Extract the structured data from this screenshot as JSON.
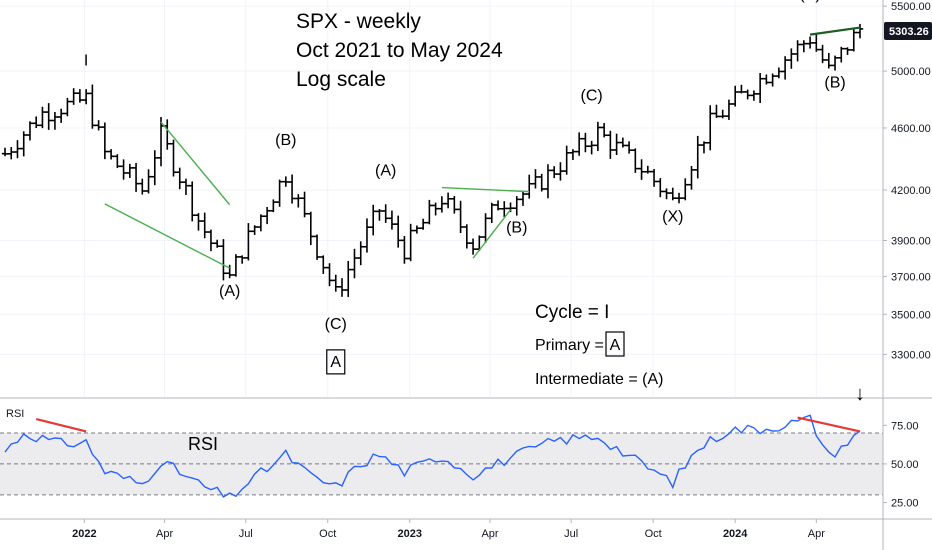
{
  "chart_data": [
    {
      "type": "ohlc",
      "panel": "price",
      "title_lines": [
        "SPX - weekly",
        "Oct 2021 to May 2024",
        "Log scale"
      ],
      "scale": "log",
      "ylim": [
        3100,
        5550
      ],
      "y_ticks": [
        5500,
        5000,
        4600,
        4200,
        3900,
        3700,
        3500,
        3300
      ],
      "y_tick_labels": [
        "5500.00",
        "5000.00",
        "4600.00",
        "4200.00",
        "3900.00",
        "3700.00",
        "3500.00",
        "3300.00"
      ],
      "last_price_label": "5303.26",
      "bar_color": "#000000",
      "anchors": [
        [
          "2021-10-04",
          4430
        ],
        [
          "2021-11-15",
          4700
        ],
        [
          "2022-01-03",
          4800
        ],
        [
          "2022-01-24",
          4430
        ],
        [
          "2022-02-21",
          4280
        ],
        [
          "2022-03-07",
          4200
        ],
        [
          "2022-03-28",
          4550
        ],
        [
          "2022-05-09",
          4020
        ],
        [
          "2022-06-13",
          3690
        ],
        [
          "2022-06-27",
          3850
        ],
        [
          "2022-08-15",
          4300
        ],
        [
          "2022-09-12",
          3940
        ],
        [
          "2022-10-10",
          3600
        ],
        [
          "2022-11-28",
          4080
        ],
        [
          "2022-12-26",
          3850
        ],
        [
          "2023-02-06",
          4150
        ],
        [
          "2023-03-13",
          3880
        ],
        [
          "2023-04-10",
          4120
        ],
        [
          "2023-05-15",
          4190
        ],
        [
          "2023-07-31",
          4570
        ],
        [
          "2023-09-25",
          4300
        ],
        [
          "2023-10-23",
          4130
        ],
        [
          "2023-12-04",
          4630
        ],
        [
          "2024-03-25",
          5250
        ],
        [
          "2024-04-15",
          5000
        ],
        [
          "2024-05-20",
          5320
        ]
      ],
      "x_tick_labels": [
        {
          "date": "2022-01-01",
          "label": "2022",
          "bold": true
        },
        {
          "date": "2022-04-01",
          "label": "Apr",
          "bold": false
        },
        {
          "date": "2022-07-01",
          "label": "Jul",
          "bold": false
        },
        {
          "date": "2022-10-01",
          "label": "Oct",
          "bold": false
        },
        {
          "date": "2023-01-01",
          "label": "2023",
          "bold": true
        },
        {
          "date": "2023-04-01",
          "label": "Apr",
          "bold": false
        },
        {
          "date": "2023-07-01",
          "label": "Jul",
          "bold": false
        },
        {
          "date": "2023-10-01",
          "label": "Oct",
          "bold": false
        },
        {
          "date": "2024-01-01",
          "label": "2024",
          "bold": true
        },
        {
          "date": "2024-04-01",
          "label": "Apr",
          "bold": false
        }
      ],
      "wave_labels": [
        {
          "text": "I",
          "date": "2022-01-03",
          "price": 5040,
          "boxed": false
        },
        {
          "text": "(A)",
          "date": "2022-06-13",
          "price": 3595,
          "boxed": false
        },
        {
          "text": "(B)",
          "date": "2022-08-15",
          "price": 4485,
          "boxed": false
        },
        {
          "text": "(C)",
          "date": "2022-10-10",
          "price": 3425,
          "boxed": false
        },
        {
          "text": "A",
          "date": "2022-10-10",
          "price": 3240,
          "boxed": true
        },
        {
          "text": "(A)",
          "date": "2022-12-05",
          "price": 4290,
          "boxed": false
        },
        {
          "text": "(B)",
          "date": "2023-05-01",
          "price": 3945,
          "boxed": false
        },
        {
          "text": "(C)",
          "date": "2023-07-24",
          "price": 4790,
          "boxed": false
        },
        {
          "text": "(X)",
          "date": "2023-10-23",
          "price": 4010,
          "boxed": false
        },
        {
          "text": "(A)",
          "date": "2024-03-25",
          "price": 5560,
          "boxed": false
        },
        {
          "text": "(B)",
          "date": "2024-04-22",
          "price": 4880,
          "boxed": false
        }
      ],
      "legend_text": {
        "cycle": "Cycle = I",
        "primary_prefix": "Primary = ",
        "primary_boxed": "A",
        "intermediate": "Intermediate = (A)"
      },
      "trendlines": [
        {
          "color": "#4caf50",
          "from": [
            "2022-03-28",
            4640
          ],
          "to": [
            "2022-06-13",
            4110
          ]
        },
        {
          "color": "#4caf50",
          "from": [
            "2022-01-24",
            4115
          ],
          "to": [
            "2022-06-13",
            3745
          ]
        },
        {
          "color": "#4caf50",
          "from": [
            "2023-02-06",
            4215
          ],
          "to": [
            "2023-05-15",
            4190
          ]
        },
        {
          "color": "#4caf50",
          "from": [
            "2023-03-13",
            3800
          ],
          "to": [
            "2023-04-24",
            4080
          ]
        },
        {
          "color": "#1b5e20",
          "from": [
            "2024-03-25",
            5275
          ],
          "to": [
            "2024-05-20",
            5330
          ]
        }
      ]
    },
    {
      "type": "line",
      "panel": "rsi",
      "label": "RSI",
      "series_color": "#2962ff",
      "ylim": [
        15,
        92
      ],
      "y_ticks": [
        75,
        50,
        25
      ],
      "y_tick_labels": [
        "75.00",
        "50.00",
        "25.00"
      ],
      "band": [
        70,
        30
      ],
      "dashed_levels": [
        70,
        50,
        30
      ],
      "anchors": [
        [
          "2021-10-04",
          58
        ],
        [
          "2021-10-25",
          70
        ],
        [
          "2021-12-06",
          63
        ],
        [
          "2022-01-03",
          64
        ],
        [
          "2022-01-24",
          45
        ],
        [
          "2022-03-07",
          37
        ],
        [
          "2022-03-28",
          52
        ],
        [
          "2022-04-25",
          42
        ],
        [
          "2022-05-16",
          35
        ],
        [
          "2022-06-13",
          28
        ],
        [
          "2022-07-04",
          38
        ],
        [
          "2022-08-15",
          56
        ],
        [
          "2022-09-12",
          42
        ],
        [
          "2022-10-10",
          35
        ],
        [
          "2022-11-07",
          50
        ],
        [
          "2022-11-28",
          56
        ],
        [
          "2022-12-26",
          45
        ],
        [
          "2023-02-06",
          55
        ],
        [
          "2023-03-13",
          43
        ],
        [
          "2023-04-24",
          54
        ],
        [
          "2023-06-12",
          65
        ],
        [
          "2023-07-31",
          68
        ],
        [
          "2023-09-04",
          55
        ],
        [
          "2023-10-23",
          38
        ],
        [
          "2023-11-20",
          60
        ],
        [
          "2023-12-25",
          72
        ],
        [
          "2024-02-05",
          73
        ],
        [
          "2024-03-25",
          79
        ],
        [
          "2024-04-15",
          55
        ],
        [
          "2024-05-20",
          70
        ]
      ],
      "divergence_lines": [
        {
          "color": "#e53935",
          "from": [
            "2021-11-08",
            79
          ],
          "to": [
            "2022-01-03",
            71
          ]
        },
        {
          "color": "#e53935",
          "from": [
            "2024-03-11",
            80
          ],
          "to": [
            "2024-05-20",
            71
          ]
        }
      ],
      "arrow_symbol": "↓"
    }
  ],
  "colors": {
    "background": "#ffffff",
    "grid": "#f0f3fa",
    "axis_line": "#b2b5be",
    "price_label_bg": "#131722",
    "rsi_band": "#ececee"
  }
}
